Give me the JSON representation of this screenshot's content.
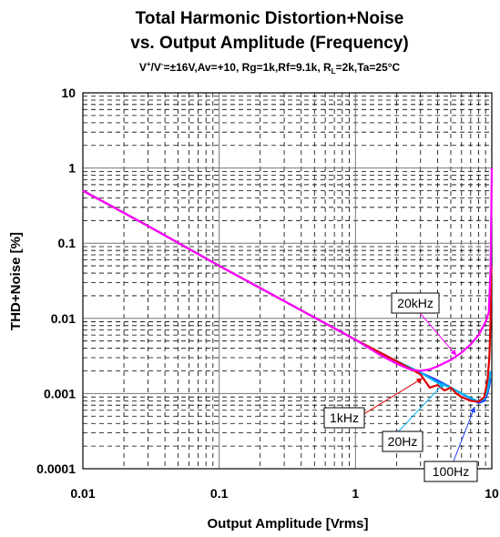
{
  "chart_data": {
    "type": "line",
    "title_line1": "Total Harmonic Distortion+Noise",
    "title_line2": "vs. Output Amplitude (Frequency)",
    "subtitle_parts": {
      "v": "V",
      "plus": "+",
      "slash": "/V",
      "minus": "-",
      "rest1": "=±16V,Av=+10, Rg=1k,Rf=9.1k, R",
      "sub_l": "L",
      "rest2": "=2k,Ta=25°C"
    },
    "xlabel": "Output Amplitude [Vrms]",
    "ylabel": "THD+Noise [%]",
    "x_scale": "log",
    "y_scale": "log",
    "xlim": [
      0.01,
      10
    ],
    "ylim": [
      0.0001,
      10
    ],
    "x_ticks": [
      {
        "value": 0.01,
        "label": "0.01"
      },
      {
        "value": 0.1,
        "label": "0.1"
      },
      {
        "value": 1,
        "label": "1"
      },
      {
        "value": 10,
        "label": "10"
      }
    ],
    "y_ticks": [
      {
        "value": 10,
        "label": "10"
      },
      {
        "value": 1,
        "label": "1"
      },
      {
        "value": 0.1,
        "label": "0.1"
      },
      {
        "value": 0.01,
        "label": "0.01"
      },
      {
        "value": 0.001,
        "label": "0.001"
      },
      {
        "value": 0.0001,
        "label": "0.0001"
      }
    ],
    "grid": true,
    "series": [
      {
        "name": "100Hz",
        "color": "#1f3fff",
        "x": [
          0.01,
          0.03,
          0.1,
          0.3,
          1,
          2,
          3,
          4,
          5,
          6,
          7,
          8,
          8.8,
          9.3,
          9.6,
          9.8
        ],
        "y": [
          0.5,
          0.17,
          0.05,
          0.017,
          0.0052,
          0.0027,
          0.0019,
          0.0015,
          0.0012,
          0.001,
          0.00085,
          0.00075,
          0.0008,
          0.001,
          0.0013,
          0.0016
        ]
      },
      {
        "name": "20Hz",
        "color": "#00b4f0",
        "x": [
          0.01,
          0.03,
          0.1,
          0.3,
          1,
          2,
          3,
          4,
          5,
          6,
          7,
          8,
          8.8,
          9.3,
          9.6,
          9.8
        ],
        "y": [
          0.5,
          0.17,
          0.05,
          0.017,
          0.0052,
          0.0027,
          0.0019,
          0.0014,
          0.0012,
          0.001,
          0.00087,
          0.00078,
          0.00085,
          0.0011,
          0.0015,
          0.002
        ]
      },
      {
        "name": "1kHz",
        "color": "#e00000",
        "x": [
          0.01,
          0.03,
          0.1,
          0.3,
          1,
          2,
          3,
          3.5,
          4,
          4.5,
          5,
          5.5,
          6,
          7,
          8,
          8.8,
          9.3,
          9.6,
          9.8,
          9.9
        ],
        "y": [
          0.5,
          0.17,
          0.05,
          0.017,
          0.0052,
          0.0027,
          0.0018,
          0.0012,
          0.0013,
          0.0011,
          0.0012,
          0.001,
          0.0009,
          0.0008,
          0.00078,
          0.0009,
          0.0015,
          0.003,
          0.01,
          0.05
        ]
      },
      {
        "name": "20kHz",
        "color": "#ff00ff",
        "x": [
          0.01,
          0.03,
          0.1,
          0.3,
          1,
          1.5,
          2,
          2.5,
          3,
          3.5,
          4,
          5,
          6,
          7,
          8,
          9,
          9.5,
          9.8,
          10
        ],
        "y": [
          0.5,
          0.17,
          0.05,
          0.017,
          0.0052,
          0.0033,
          0.0025,
          0.0021,
          0.002,
          0.0021,
          0.0023,
          0.0028,
          0.0035,
          0.0045,
          0.006,
          0.009,
          0.012,
          0.05,
          1.0
        ]
      }
    ],
    "annotations": [
      {
        "text": "20kHz",
        "series": "20kHz",
        "point": [
          5.5,
          0.0032
        ]
      },
      {
        "text": "1kHz",
        "series": "1kHz",
        "point": [
          3.1,
          0.0016
        ]
      },
      {
        "text": "20Hz",
        "series": "20Hz",
        "point": [
          4.5,
          0.0014
        ]
      },
      {
        "text": "100Hz",
        "series": "100Hz",
        "point": [
          7.5,
          0.00067
        ]
      }
    ]
  }
}
